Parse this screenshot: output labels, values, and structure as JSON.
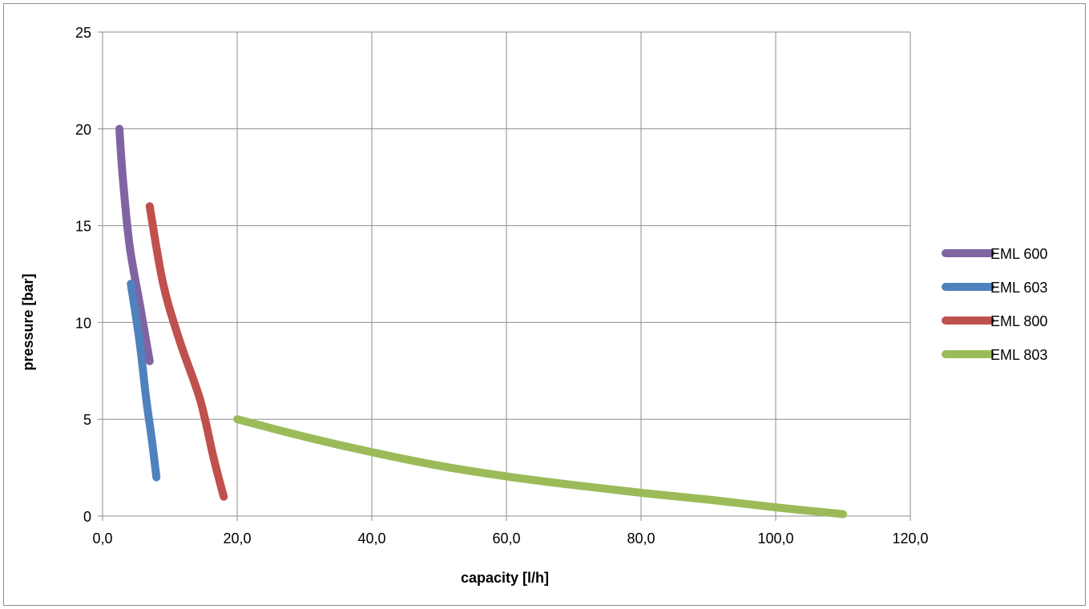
{
  "chart_data": {
    "type": "line",
    "title": "",
    "xlabel": "capacity [l/h]",
    "ylabel": "pressure [bar]",
    "xlim": [
      0,
      120
    ],
    "ylim": [
      0,
      25
    ],
    "x_ticks": [
      "0,0",
      "20,0",
      "40,0",
      "60,0",
      "80,0",
      "100,0",
      "120,0"
    ],
    "y_ticks": [
      "0",
      "5",
      "10",
      "15",
      "20",
      "25"
    ],
    "grid": true,
    "legend_position": "right",
    "series": [
      {
        "name": "EML 600",
        "color": "#8064a2",
        "points": [
          [
            2.5,
            20
          ],
          [
            3,
            17.5
          ],
          [
            4,
            14
          ],
          [
            5.5,
            11
          ],
          [
            7,
            8
          ]
        ]
      },
      {
        "name": "EML 603",
        "color": "#4f81bd",
        "points": [
          [
            4.2,
            12
          ],
          [
            5.5,
            9
          ],
          [
            6.5,
            6
          ],
          [
            7.3,
            4
          ],
          [
            8,
            2
          ]
        ]
      },
      {
        "name": "EML 800",
        "color": "#c0504d",
        "points": [
          [
            7,
            16
          ],
          [
            9,
            12
          ],
          [
            11.5,
            9
          ],
          [
            14.5,
            6
          ],
          [
            16.5,
            3
          ],
          [
            18,
            1
          ]
        ]
      },
      {
        "name": "EML 803",
        "color": "#9bbb59",
        "points": [
          [
            20,
            5
          ],
          [
            30,
            4.1
          ],
          [
            40,
            3.3
          ],
          [
            50,
            2.6
          ],
          [
            60,
            2.05
          ],
          [
            70,
            1.6
          ],
          [
            80,
            1.2
          ],
          [
            90,
            0.85
          ],
          [
            100,
            0.45
          ],
          [
            110,
            0.1
          ]
        ]
      }
    ]
  }
}
